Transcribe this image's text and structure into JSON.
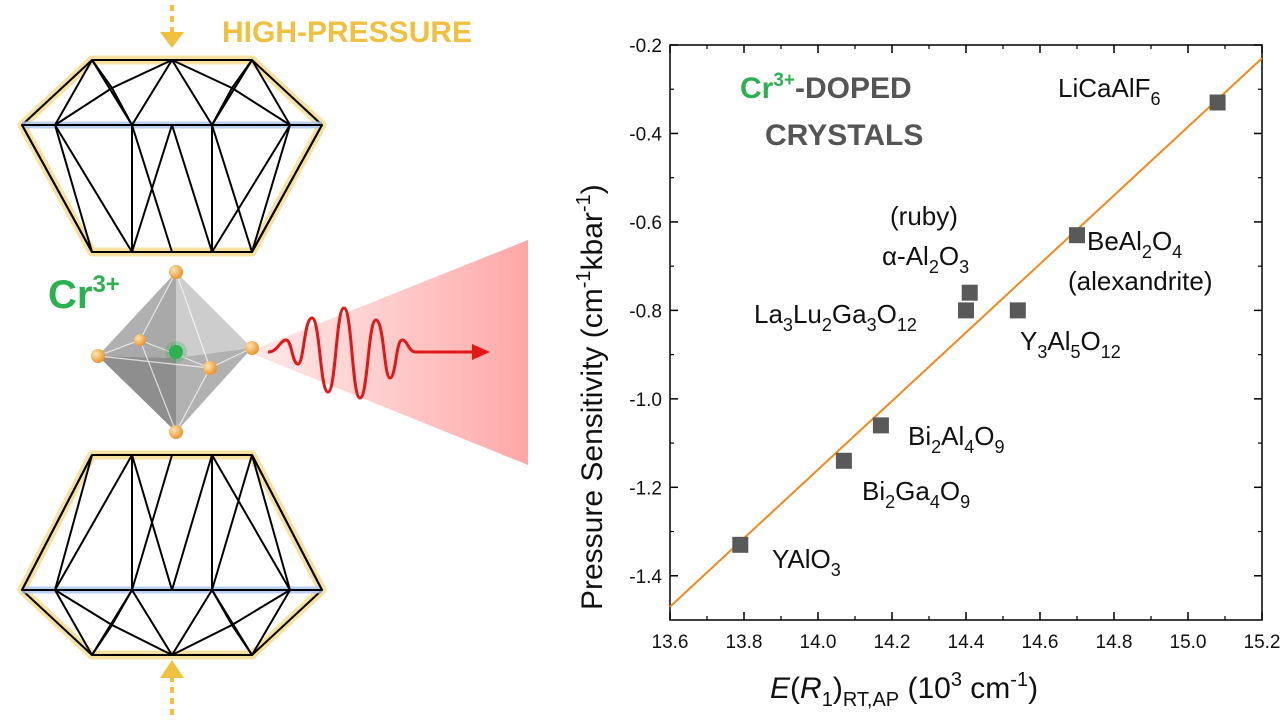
{
  "illustration": {
    "pressure_label": "HIGH-PRESSURE",
    "ion_label": {
      "base": "Cr",
      "sup": "3+"
    },
    "colors": {
      "pressure": "#f0c040",
      "ion": "#2db050",
      "beam": "#e01818",
      "diamond_top_glow": "#f5d98a",
      "diamond_bottom_glow": "#a8c4f0"
    }
  },
  "chart_data": {
    "type": "scatter",
    "title": "",
    "inset_title": {
      "line1_ion": "Cr",
      "line1_sup": "3+",
      "line1_rest": "-DOPED",
      "line2": "CRYSTALS"
    },
    "xlim": [
      13.6,
      15.2
    ],
    "ylim": [
      -1.5,
      -0.2
    ],
    "xticks": [
      "13.6",
      "13.8",
      "14.0",
      "14.2",
      "14.4",
      "14.6",
      "14.8",
      "15.0",
      "15.2"
    ],
    "yticks": [
      "-0.2",
      "-0.4",
      "-0.6",
      "-0.8",
      "-1.0",
      "-1.2",
      "-1.4"
    ],
    "xlabel": {
      "E": "E",
      "paren_open": "(",
      "R": "R",
      "R_sub": "1",
      "paren_close": ")",
      "sub": "RT,AP",
      "rest": " (10",
      "sup": "3",
      "unit": " cm",
      "unit_sup": "-1",
      "end": ")"
    },
    "ylabel": {
      "main": "Pressure Sensitivity (cm",
      "sup1": "-1",
      "mid": "kbar",
      "sup2": "-1",
      "end": ")"
    },
    "points": [
      {
        "x": 13.79,
        "y": -1.33,
        "label": "YAlO3"
      },
      {
        "x": 14.07,
        "y": -1.14,
        "label": "Bi2Ga4O9"
      },
      {
        "x": 14.17,
        "y": -1.06,
        "label": "Bi2Al4O9"
      },
      {
        "x": 14.4,
        "y": -0.8,
        "label": "La3Lu2Ga3O12"
      },
      {
        "x": 14.41,
        "y": -0.76,
        "label": "(ruby) α-Al2O3"
      },
      {
        "x": 14.54,
        "y": -0.8,
        "label": "Y3Al5O12"
      },
      {
        "x": 14.7,
        "y": -0.63,
        "label": "BeAl2O4 (alexandrite)"
      },
      {
        "x": 15.08,
        "y": -0.33,
        "label": "LiCaAlF6"
      }
    ],
    "fit_line": {
      "x1": 13.6,
      "y1": -1.47,
      "x2": 15.2,
      "y2": -0.23
    },
    "colors": {
      "marker": "#595959",
      "fit": "#f08a1c",
      "inset_ion": "#2db050",
      "inset_text": "#555555"
    }
  }
}
